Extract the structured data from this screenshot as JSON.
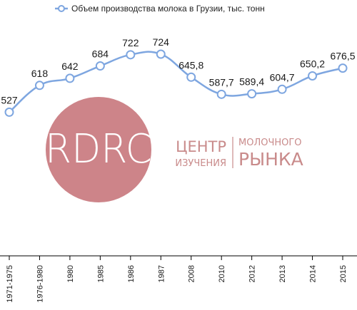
{
  "chart_data": {
    "type": "line",
    "title": "",
    "xlabel": "",
    "ylabel": "",
    "categories": [
      "1971-1975",
      "1976-1980",
      "1980",
      "1985",
      "1986",
      "1987",
      "2008",
      "2010",
      "2012",
      "2013",
      "2014",
      "2015"
    ],
    "series": [
      {
        "name": "Объем производства молока в Грузии, тыс. тонн",
        "values": [
          527,
          618,
          642,
          684,
          722,
          724,
          645.8,
          587.7,
          589.4,
          604.7,
          650.2,
          676.5
        ],
        "value_labels": [
          "527",
          "618",
          "642",
          "684",
          "722",
          "724",
          "645,8",
          "587,7",
          "589,4",
          "604,7",
          "650,2",
          "676,5"
        ],
        "color": "#7ea6e0"
      }
    ],
    "ylim": [
      400,
      760
    ],
    "grid": false,
    "legend_position": "top-center",
    "line_style": "smooth",
    "marker": "hollow-circle"
  },
  "watermark": {
    "logo_letters": "RDRC",
    "line1_left": "ЦЕНТР",
    "line2_left": "ИЗУЧЕНИЯ",
    "line1_right": "МОЛОЧНОГО",
    "line2_right": "РЫНКА",
    "circle_color": "#cd8489",
    "text_color": "#c98b8b"
  }
}
